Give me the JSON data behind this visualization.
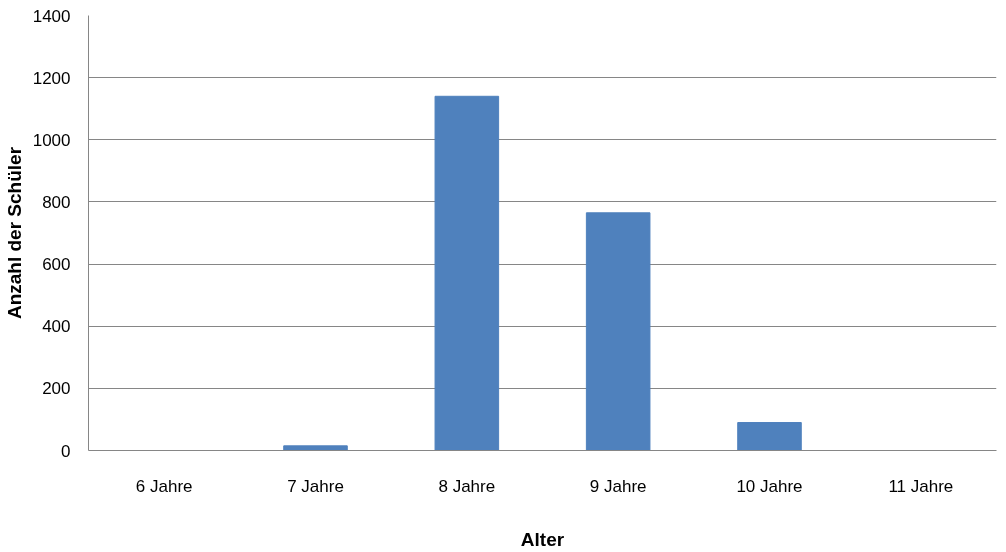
{
  "chart_data": {
    "type": "bar",
    "xlabel": "Alter",
    "ylabel": "Anzahl der Schüler",
    "categories": [
      "6 Jahre",
      "7 Jahre",
      "8 Jahre",
      "9 Jahre",
      "10 Jahre",
      "11 Jahre"
    ],
    "values": [
      0,
      15,
      1140,
      765,
      90,
      0
    ],
    "color": "#4f81bd",
    "ylim": [
      0,
      1400
    ],
    "yticks": [
      0,
      200,
      400,
      600,
      800,
      1000,
      1200,
      1400
    ],
    "grid": "y"
  }
}
